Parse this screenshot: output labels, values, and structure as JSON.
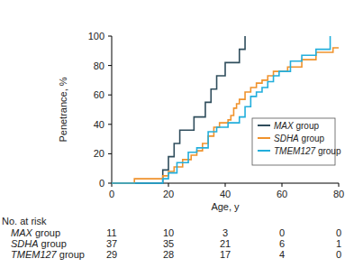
{
  "chart_data": {
    "type": "step",
    "xlabel": "Age, y",
    "ylabel": "Penetrance, %",
    "xlim": [
      0,
      80
    ],
    "xticks": [
      0,
      20,
      40,
      60,
      80
    ],
    "ylim": [
      0,
      100
    ],
    "yticks": [
      0,
      20,
      40,
      60,
      80,
      100
    ],
    "legend": "lower right",
    "series": [
      {
        "name": "MAX group",
        "color": "#2f4d5c",
        "x": [
          0,
          18,
          20,
          22,
          24,
          29,
          33,
          35,
          37,
          40,
          45,
          47
        ],
        "values": [
          0,
          9,
          18,
          27,
          36,
          45,
          55,
          64,
          73,
          82,
          91,
          100
        ]
      },
      {
        "name": "SDHA group",
        "color": "#f0922c",
        "x": [
          0,
          8,
          18,
          20,
          22,
          25,
          28,
          30,
          32,
          34,
          36,
          38,
          41,
          42,
          43,
          44,
          45,
          47,
          49,
          51,
          53,
          55,
          57,
          62,
          67,
          72,
          78,
          80
        ],
        "values": [
          0,
          3,
          5,
          8,
          11,
          16,
          19,
          22,
          27,
          32,
          38,
          41,
          43,
          46,
          51,
          54,
          57,
          62,
          65,
          68,
          70,
          73,
          76,
          79,
          84,
          89,
          92,
          92
        ]
      },
      {
        "name": "TMEM127 group",
        "color": "#22aedc",
        "x": [
          0,
          18,
          20,
          23,
          27,
          30,
          34,
          37,
          41,
          45,
          47,
          49,
          51,
          53,
          55,
          57,
          59,
          63,
          67,
          72,
          77
        ],
        "values": [
          0,
          3,
          7,
          14,
          21,
          24,
          35,
          38,
          41,
          45,
          52,
          59,
          62,
          65,
          69,
          73,
          76,
          83,
          87,
          91,
          100
        ]
      }
    ],
    "risk_table": {
      "title": "No. at risk",
      "x": [
        0,
        20,
        40,
        60,
        80
      ],
      "rows": [
        {
          "name": "MAX group",
          "values": [
            11,
            10,
            3,
            0,
            0
          ]
        },
        {
          "name": "SDHA group",
          "values": [
            37,
            35,
            21,
            6,
            1
          ]
        },
        {
          "name": "TMEM127 group",
          "values": [
            29,
            28,
            17,
            4,
            0
          ]
        }
      ]
    }
  }
}
